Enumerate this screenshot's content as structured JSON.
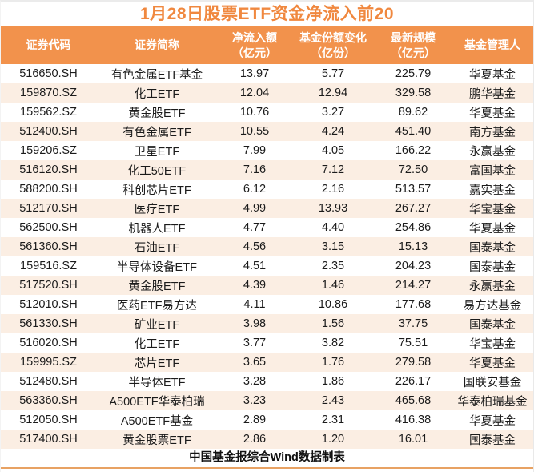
{
  "colors": {
    "title_text": "#f0883f",
    "header_bg": "#f2924c",
    "header_text": "#ffffff",
    "row_alt_bg": "#fbeee3",
    "body_text": "#1b1b1b",
    "bottom_rule": "#e8a263"
  },
  "header": {
    "columns": [
      {
        "key": "code",
        "label": "证券代码",
        "unit": ""
      },
      {
        "key": "name",
        "label": "证券简称",
        "unit": ""
      },
      {
        "key": "net-inflow",
        "label": "净流入额",
        "unit": "（亿元）"
      },
      {
        "key": "share-change",
        "label": "基金份额变化",
        "unit": "（亿份）"
      },
      {
        "key": "latest-scale",
        "label": "最新规模",
        "unit": "（亿元）"
      },
      {
        "key": "manager",
        "label": "基金管理人",
        "unit": ""
      }
    ]
  },
  "chart_data": {
    "type": "table",
    "title": "1月28日股票ETF资金净流入前20",
    "columns": [
      "证券代码",
      "证券简称",
      "净流入额（亿元）",
      "基金份额变化（亿份）",
      "最新规模（亿元）",
      "基金管理人"
    ],
    "rows": [
      [
        "516650.SH",
        "有色金属ETF基金",
        "13.97",
        "5.77",
        "225.79",
        "华夏基金"
      ],
      [
        "159870.SZ",
        "化工ETF",
        "12.04",
        "12.94",
        "329.58",
        "鹏华基金"
      ],
      [
        "159562.SZ",
        "黄金股ETF",
        "10.76",
        "3.27",
        "89.62",
        "华夏基金"
      ],
      [
        "512400.SH",
        "有色金属ETF",
        "10.55",
        "4.24",
        "451.40",
        "南方基金"
      ],
      [
        "159206.SZ",
        "卫星ETF",
        "7.99",
        "4.05",
        "166.22",
        "永赢基金"
      ],
      [
        "516120.SH",
        "化工50ETF",
        "7.16",
        "7.12",
        "72.50",
        "富国基金"
      ],
      [
        "588200.SH",
        "科创芯片ETF",
        "6.12",
        "2.16",
        "513.57",
        "嘉实基金"
      ],
      [
        "512170.SH",
        "医疗ETF",
        "4.99",
        "13.93",
        "267.27",
        "华宝基金"
      ],
      [
        "562500.SH",
        "机器人ETF",
        "4.77",
        "4.40",
        "254.86",
        "华夏基金"
      ],
      [
        "561360.SH",
        "石油ETF",
        "4.56",
        "3.15",
        "15.13",
        "国泰基金"
      ],
      [
        "159516.SZ",
        "半导体设备ETF",
        "4.51",
        "2.35",
        "204.23",
        "国泰基金"
      ],
      [
        "517520.SH",
        "黄金股ETF",
        "4.39",
        "1.46",
        "214.27",
        "永赢基金"
      ],
      [
        "512010.SH",
        "医药ETF易方达",
        "4.11",
        "10.86",
        "177.68",
        "易方达基金"
      ],
      [
        "561330.SH",
        "矿业ETF",
        "3.98",
        "1.56",
        "37.75",
        "国泰基金"
      ],
      [
        "516020.SH",
        "化工ETF",
        "3.77",
        "3.82",
        "75.51",
        "华宝基金"
      ],
      [
        "159995.SZ",
        "芯片ETF",
        "3.65",
        "1.76",
        "279.58",
        "华夏基金"
      ],
      [
        "512480.SH",
        "半导体ETF",
        "3.28",
        "1.86",
        "226.17",
        "国联安基金"
      ],
      [
        "563360.SH",
        "A500ETF华泰柏瑞",
        "3.23",
        "2.43",
        "465.68",
        "华泰柏瑞基金"
      ],
      [
        "512050.SH",
        "A500ETF基金",
        "2.89",
        "2.31",
        "416.38",
        "华夏基金"
      ],
      [
        "517400.SH",
        "黄金股票ETF",
        "2.86",
        "1.20",
        "16.01",
        "国泰基金"
      ]
    ],
    "footer": "中国基金报综合Wind数据制表"
  }
}
